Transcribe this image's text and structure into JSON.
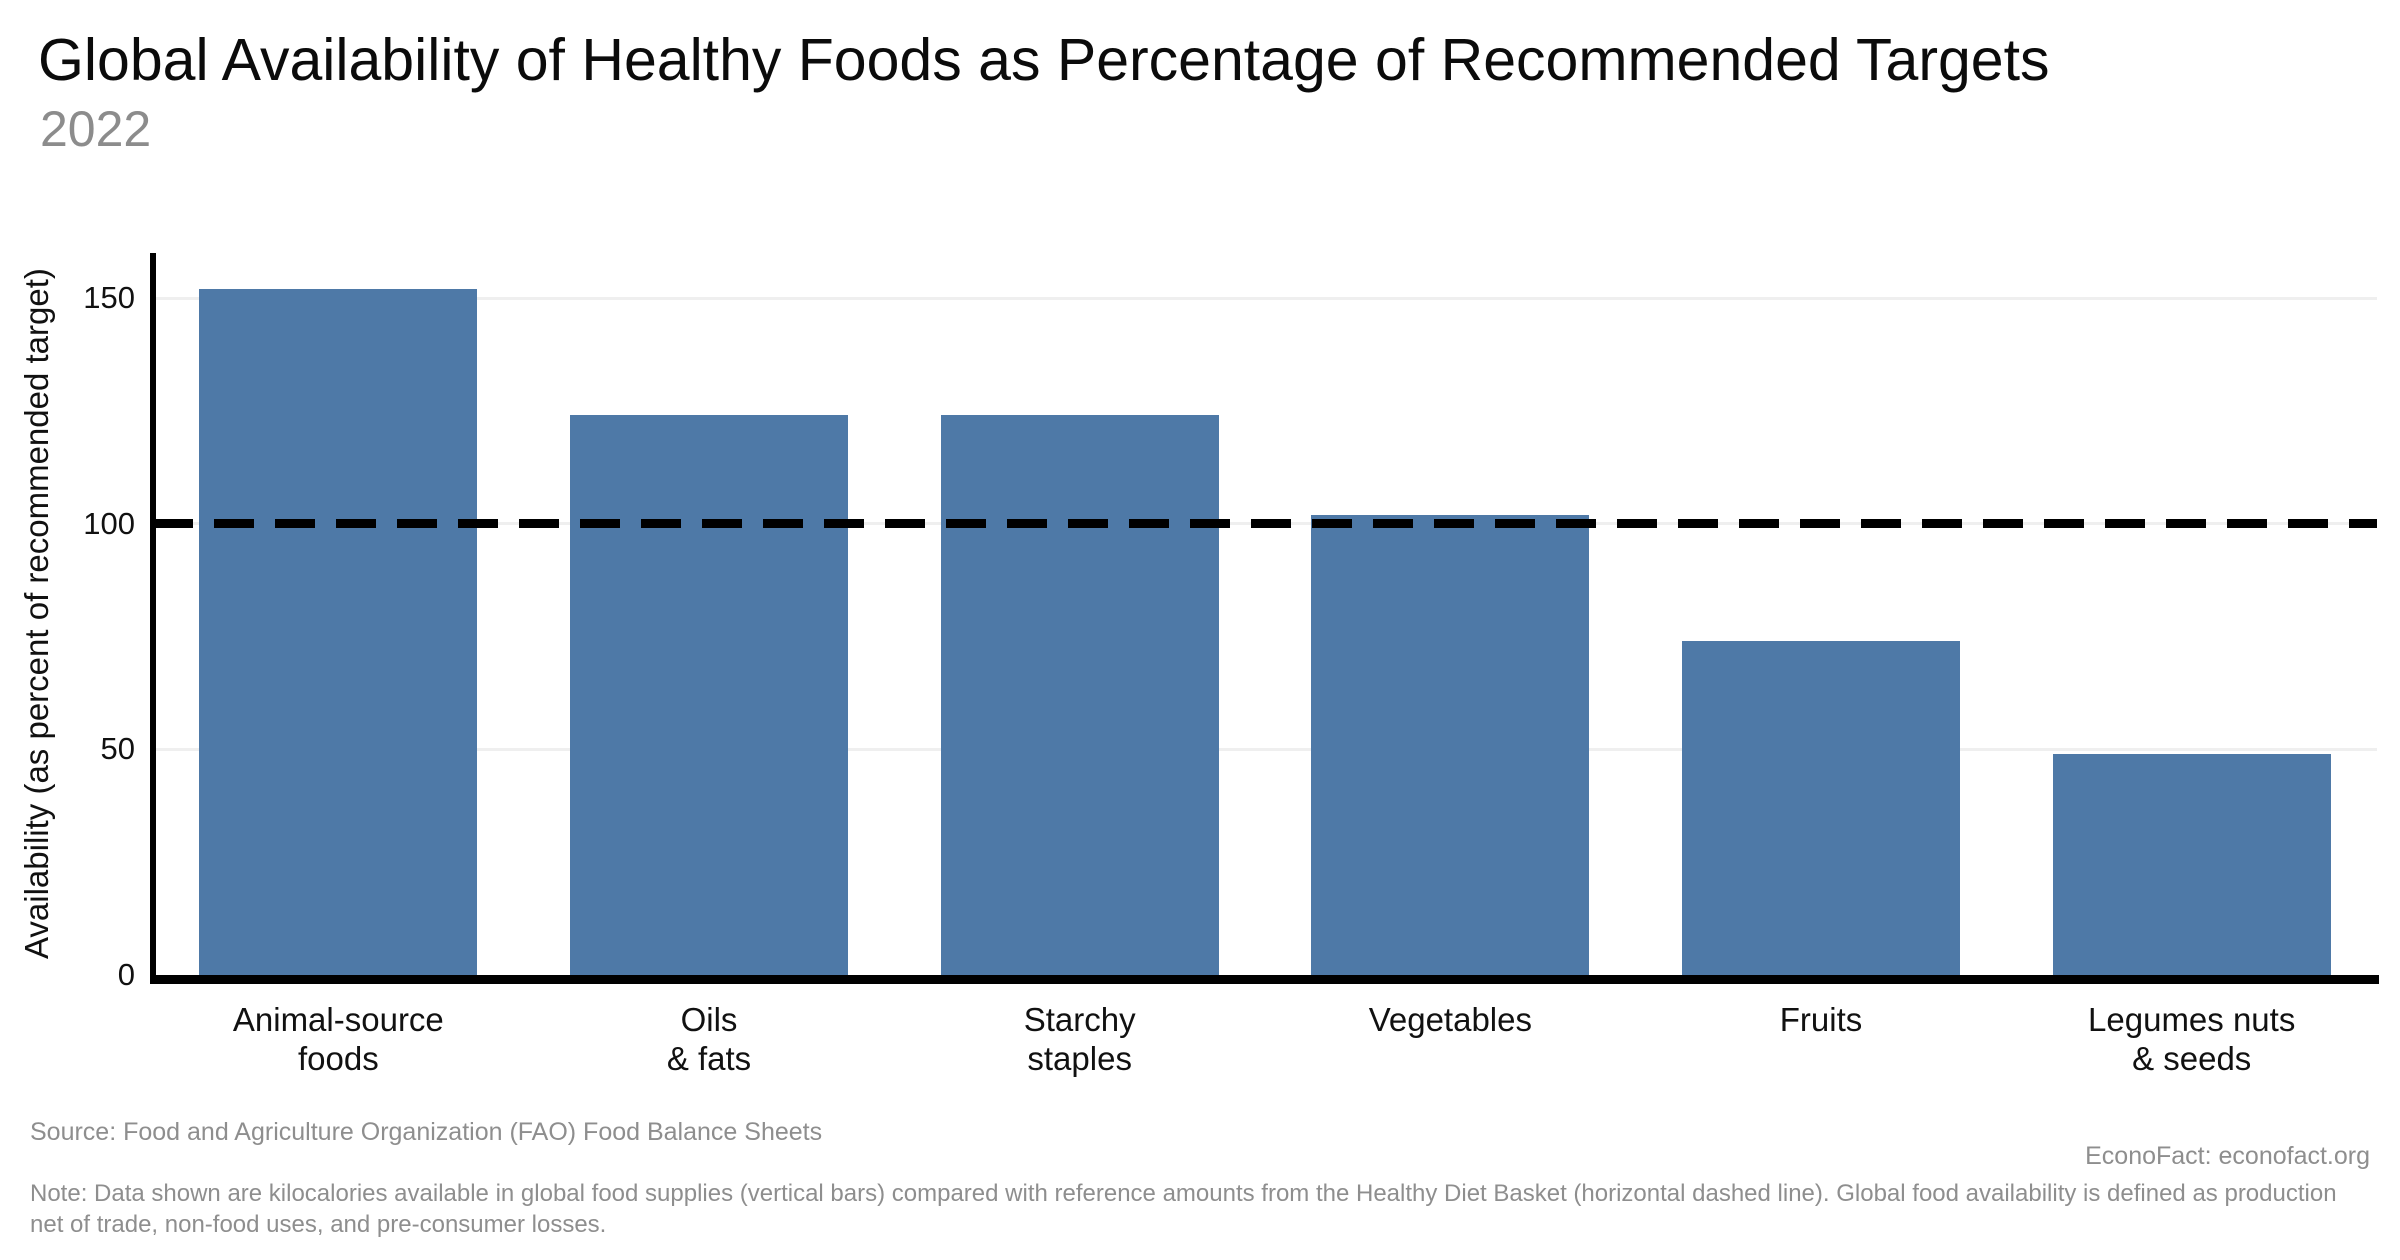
{
  "header": {
    "title": "Global Availability of Healthy Foods as Percentage of Recommended Targets",
    "subtitle": "2022"
  },
  "chart_data": {
    "type": "bar",
    "title": "Global Availability of Healthy Foods as Percentage of Recommended Targets",
    "subtitle": "2022",
    "categories": [
      "Animal-source\nfoods",
      "Oils\n& fats",
      "Starchy\nstaples",
      "Vegetables",
      "Fruits",
      "Legumes nuts\n& seeds"
    ],
    "values": [
      152,
      124,
      124,
      102,
      74,
      49
    ],
    "xlabel": "",
    "ylabel": "Availability (as percent of recommended target)",
    "yticks": [
      0,
      50,
      100,
      150
    ],
    "gridline_values": [
      50,
      100,
      150
    ],
    "ylim": [
      0,
      160
    ],
    "bar_color": "#4e79a7",
    "reference_line": {
      "value": 100,
      "style": "dashed",
      "color": "#000000"
    },
    "grid": "horizontal-light",
    "legend": "none"
  },
  "footer": {
    "source": "Source: Food and Agriculture Organization (FAO) Food Balance Sheets",
    "attribution": "EconoFact: econofact.org",
    "note": "Note: Data shown are kilocalories available in global food supplies (vertical bars) compared with reference amounts from the Healthy Diet Basket (horizontal dashed line). Global food availability is defined as production net of trade, non-food uses, and pre-consumer losses."
  }
}
